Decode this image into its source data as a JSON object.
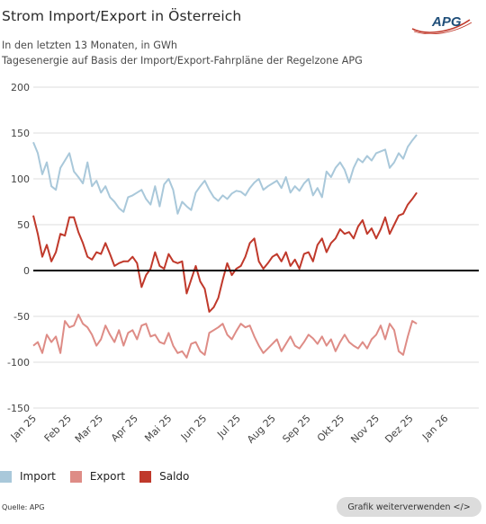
{
  "header": {
    "title": "Strom Import/Export in Österreich",
    "subtitle_1": "In den letzten 13 Monaten, in GWh",
    "subtitle_2": "Tagesenergie auf Basis der Import/Export-Fahrpläne der Regelzone APG",
    "logo_text": "APG"
  },
  "footer": {
    "source": "Quelle: APG",
    "reuse_button": "Grafik weiterverwenden </>"
  },
  "colors": {
    "import": "#a9c8da",
    "export": "#de8c86",
    "saldo": "#c0392b",
    "zero_line": "#000000",
    "grid": "#dddddd",
    "logo_red": "#c0392b",
    "logo_blue": "#1f4e79"
  },
  "chart_data": {
    "type": "line",
    "xlabel": "",
    "ylabel": "",
    "ylim": [
      -150,
      200
    ],
    "yticks": [
      -150,
      -100,
      -50,
      0,
      50,
      100,
      150,
      200
    ],
    "ytick_labels": [
      "-150",
      "-100",
      "-50",
      "0",
      "50",
      "100",
      "150",
      "200"
    ],
    "xlim": [
      "2025-01-01",
      "2026-01-31"
    ],
    "xticks": [
      "Jan 25",
      "Feb 25",
      "Mar 25",
      "Apr 25",
      "Mai 25",
      "Jun 25",
      "Jul 25",
      "Aug 25",
      "Sep 25",
      "Okt 25",
      "Nov 25",
      "Dez 25",
      "Jan 26"
    ],
    "grid": true,
    "legend_position": "bottom-left",
    "x_resolution": "daily (every 4th day sampled)",
    "series": [
      {
        "name": "Import",
        "color": "#a9c8da",
        "x_start": "2025-01-01",
        "x_step_days": 4,
        "values": [
          140,
          128,
          105,
          118,
          92,
          88,
          112,
          120,
          128,
          108,
          102,
          95,
          118,
          92,
          98,
          85,
          92,
          80,
          75,
          68,
          64,
          80,
          82,
          85,
          88,
          78,
          72,
          92,
          70,
          94,
          100,
          88,
          62,
          75,
          70,
          66,
          85,
          92,
          98,
          88,
          80,
          76,
          82,
          78,
          84,
          87,
          86,
          82,
          90,
          96,
          100,
          88,
          92,
          95,
          98,
          90,
          102,
          85,
          92,
          87,
          95,
          100,
          82,
          90,
          80,
          108,
          102,
          112,
          118,
          110,
          96,
          112,
          122,
          118,
          125,
          120,
          128,
          130,
          132,
          112,
          118,
          128,
          122,
          135,
          142,
          148
        ]
      },
      {
        "name": "Export",
        "color": "#de8c86",
        "x_start": "2025-01-01",
        "x_step_days": 4,
        "values": [
          -82,
          -78,
          -90,
          -70,
          -78,
          -72,
          -90,
          -55,
          -62,
          -60,
          -48,
          -58,
          -62,
          -70,
          -82,
          -75,
          -60,
          -70,
          -78,
          -65,
          -82,
          -68,
          -65,
          -75,
          -60,
          -58,
          -72,
          -70,
          -78,
          -80,
          -68,
          -82,
          -90,
          -88,
          -95,
          -80,
          -78,
          -88,
          -92,
          -68,
          -65,
          -62,
          -58,
          -70,
          -75,
          -66,
          -58,
          -62,
          -60,
          -72,
          -82,
          -90,
          -85,
          -80,
          -75,
          -88,
          -80,
          -72,
          -82,
          -85,
          -78,
          -70,
          -74,
          -80,
          -72,
          -82,
          -75,
          -88,
          -78,
          -70,
          -78,
          -82,
          -85,
          -78,
          -85,
          -75,
          -70,
          -60,
          -75,
          -58,
          -65,
          -88,
          -92,
          -72,
          -55,
          -58
        ]
      },
      {
        "name": "Saldo",
        "color": "#c0392b",
        "x_start": "2025-01-01",
        "x_step_days": 4,
        "values": [
          60,
          40,
          15,
          28,
          10,
          20,
          40,
          38,
          58,
          58,
          42,
          30,
          15,
          12,
          20,
          18,
          30,
          18,
          5,
          8,
          10,
          10,
          15,
          8,
          -18,
          -5,
          2,
          20,
          5,
          2,
          18,
          10,
          8,
          10,
          -25,
          -10,
          5,
          -12,
          -20,
          -45,
          -40,
          -30,
          -10,
          8,
          -5,
          2,
          5,
          15,
          30,
          35,
          10,
          2,
          8,
          15,
          18,
          10,
          20,
          5,
          12,
          2,
          18,
          20,
          10,
          28,
          35,
          20,
          30,
          35,
          45,
          40,
          42,
          35,
          48,
          55,
          40,
          46,
          35,
          45,
          58,
          40,
          50,
          60,
          62,
          72,
          78,
          85
        ]
      }
    ]
  }
}
